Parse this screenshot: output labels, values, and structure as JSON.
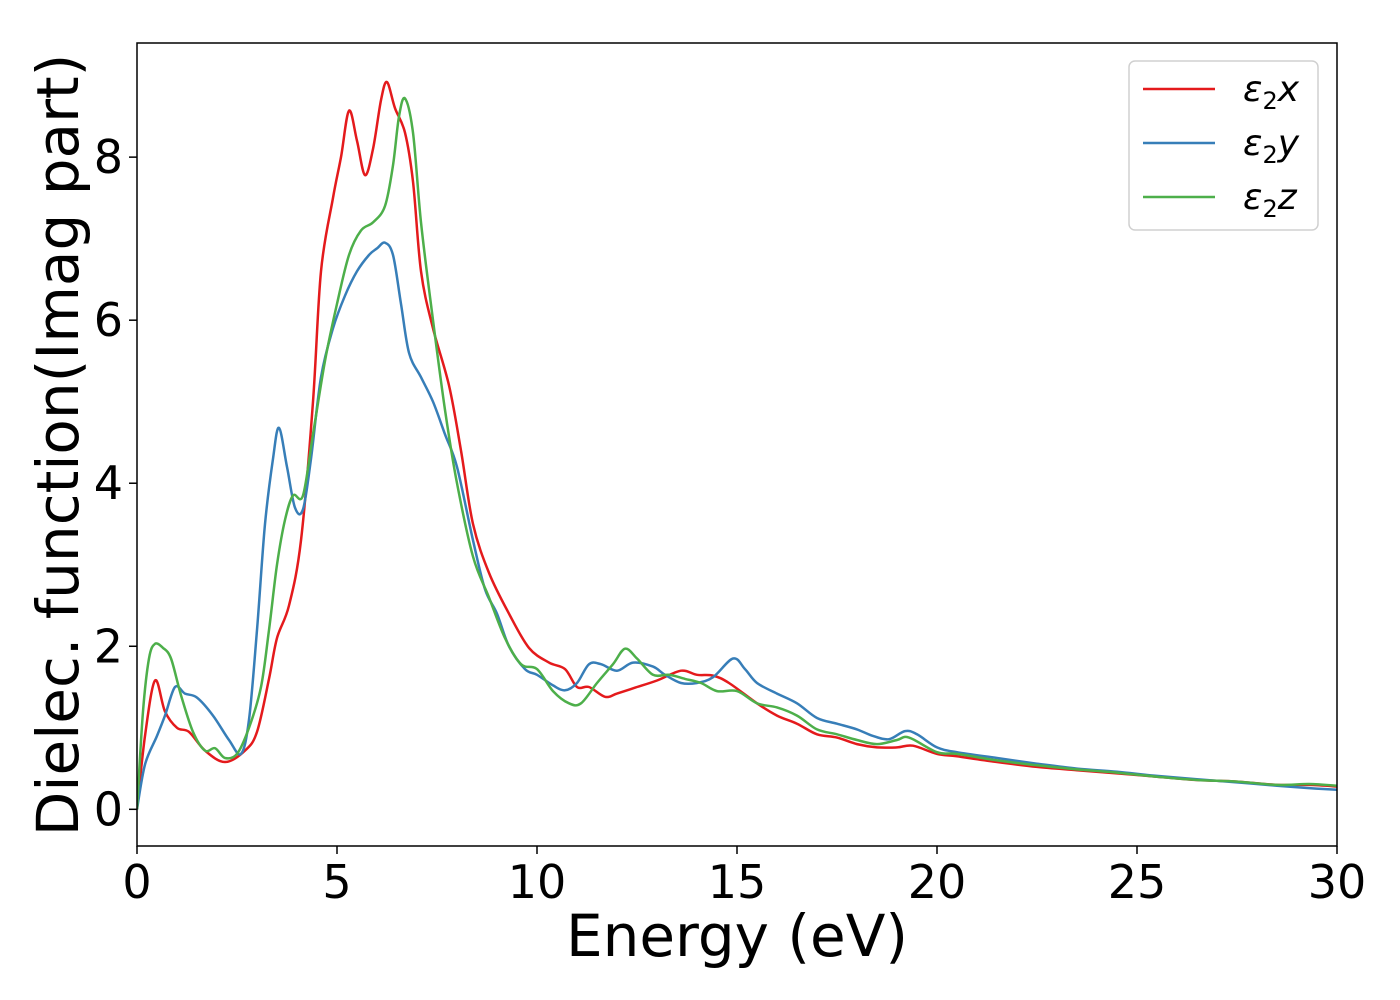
{
  "chart_data": {
    "type": "line",
    "xlabel": "Energy (eV)",
    "ylabel": "Dielec. function(Imag part)",
    "xlim": [
      0,
      30
    ],
    "ylim": [
      -0.45,
      9.4
    ],
    "xticks": [
      0,
      5,
      10,
      15,
      20,
      25,
      30
    ],
    "yticks": [
      0,
      2,
      4,
      6,
      8
    ],
    "grid": false,
    "legend_position": "top-right",
    "series": [
      {
        "name": "ε2x",
        "legend": {
          "base": "ε",
          "sub": "2",
          "var": "x"
        },
        "color": "#e41a1c",
        "points": [
          [
            0,
            0
          ],
          [
            0.2,
            0.9
          ],
          [
            0.45,
            1.58
          ],
          [
            0.7,
            1.2
          ],
          [
            1.0,
            1.0
          ],
          [
            1.3,
            0.95
          ],
          [
            1.7,
            0.72
          ],
          [
            2.2,
            0.58
          ],
          [
            2.7,
            0.72
          ],
          [
            3.0,
            0.95
          ],
          [
            3.3,
            1.6
          ],
          [
            3.5,
            2.1
          ],
          [
            3.8,
            2.5
          ],
          [
            4.1,
            3.3
          ],
          [
            4.4,
            5.0
          ],
          [
            4.6,
            6.6
          ],
          [
            4.9,
            7.5
          ],
          [
            5.1,
            8.0
          ],
          [
            5.3,
            8.57
          ],
          [
            5.5,
            8.2
          ],
          [
            5.7,
            7.78
          ],
          [
            5.9,
            8.1
          ],
          [
            6.1,
            8.7
          ],
          [
            6.25,
            8.92
          ],
          [
            6.45,
            8.6
          ],
          [
            6.7,
            8.3
          ],
          [
            6.9,
            7.7
          ],
          [
            7.1,
            6.6
          ],
          [
            7.4,
            5.9
          ],
          [
            7.8,
            5.2
          ],
          [
            8.1,
            4.4
          ],
          [
            8.4,
            3.5
          ],
          [
            8.8,
            2.9
          ],
          [
            9.3,
            2.4
          ],
          [
            9.8,
            1.98
          ],
          [
            10.3,
            1.8
          ],
          [
            10.7,
            1.72
          ],
          [
            11.0,
            1.5
          ],
          [
            11.3,
            1.5
          ],
          [
            11.7,
            1.38
          ],
          [
            12.0,
            1.42
          ],
          [
            12.5,
            1.5
          ],
          [
            13.0,
            1.58
          ],
          [
            13.6,
            1.7
          ],
          [
            14.0,
            1.65
          ],
          [
            14.4,
            1.64
          ],
          [
            14.8,
            1.55
          ],
          [
            15.5,
            1.3
          ],
          [
            16.0,
            1.15
          ],
          [
            16.5,
            1.05
          ],
          [
            17.0,
            0.92
          ],
          [
            17.5,
            0.88
          ],
          [
            18.0,
            0.8
          ],
          [
            18.5,
            0.76
          ],
          [
            19.0,
            0.76
          ],
          [
            19.4,
            0.78
          ],
          [
            20.0,
            0.68
          ],
          [
            20.5,
            0.65
          ],
          [
            21.5,
            0.58
          ],
          [
            22.5,
            0.52
          ],
          [
            23.5,
            0.48
          ],
          [
            24.5,
            0.44
          ],
          [
            25.5,
            0.4
          ],
          [
            26.5,
            0.36
          ],
          [
            27.5,
            0.34
          ],
          [
            28.5,
            0.3
          ],
          [
            29.3,
            0.3
          ],
          [
            30,
            0.28
          ]
        ]
      },
      {
        "name": "ε2y",
        "legend": {
          "base": "ε",
          "sub": "2",
          "var": "y"
        },
        "color": "#377eb8",
        "points": [
          [
            0,
            0
          ],
          [
            0.2,
            0.55
          ],
          [
            0.5,
            0.9
          ],
          [
            0.7,
            1.15
          ],
          [
            0.95,
            1.5
          ],
          [
            1.2,
            1.42
          ],
          [
            1.5,
            1.37
          ],
          [
            1.9,
            1.15
          ],
          [
            2.3,
            0.85
          ],
          [
            2.6,
            0.68
          ],
          [
            2.8,
            1.1
          ],
          [
            3.0,
            2.2
          ],
          [
            3.2,
            3.5
          ],
          [
            3.4,
            4.3
          ],
          [
            3.55,
            4.68
          ],
          [
            3.75,
            4.2
          ],
          [
            3.95,
            3.7
          ],
          [
            4.15,
            3.68
          ],
          [
            4.35,
            4.3
          ],
          [
            4.6,
            5.3
          ],
          [
            4.9,
            5.9
          ],
          [
            5.2,
            6.3
          ],
          [
            5.5,
            6.6
          ],
          [
            5.8,
            6.8
          ],
          [
            6.0,
            6.88
          ],
          [
            6.2,
            6.95
          ],
          [
            6.4,
            6.8
          ],
          [
            6.6,
            6.2
          ],
          [
            6.8,
            5.6
          ],
          [
            7.1,
            5.3
          ],
          [
            7.4,
            5.0
          ],
          [
            7.7,
            4.6
          ],
          [
            8.0,
            4.2
          ],
          [
            8.4,
            3.3
          ],
          [
            8.7,
            2.7
          ],
          [
            9.0,
            2.4
          ],
          [
            9.3,
            2.0
          ],
          [
            9.7,
            1.72
          ],
          [
            10.0,
            1.65
          ],
          [
            10.4,
            1.52
          ],
          [
            10.7,
            1.46
          ],
          [
            11.0,
            1.55
          ],
          [
            11.3,
            1.78
          ],
          [
            11.6,
            1.78
          ],
          [
            12.0,
            1.7
          ],
          [
            12.4,
            1.8
          ],
          [
            12.9,
            1.75
          ],
          [
            13.2,
            1.65
          ],
          [
            13.6,
            1.55
          ],
          [
            14.0,
            1.55
          ],
          [
            14.4,
            1.62
          ],
          [
            14.9,
            1.85
          ],
          [
            15.2,
            1.72
          ],
          [
            15.5,
            1.55
          ],
          [
            16.0,
            1.42
          ],
          [
            16.5,
            1.3
          ],
          [
            17.0,
            1.12
          ],
          [
            17.5,
            1.05
          ],
          [
            18.0,
            0.98
          ],
          [
            18.4,
            0.9
          ],
          [
            18.8,
            0.86
          ],
          [
            19.2,
            0.96
          ],
          [
            19.5,
            0.92
          ],
          [
            20.0,
            0.76
          ],
          [
            20.5,
            0.7
          ],
          [
            21.5,
            0.63
          ],
          [
            22.5,
            0.56
          ],
          [
            23.5,
            0.5
          ],
          [
            24.5,
            0.46
          ],
          [
            25.5,
            0.41
          ],
          [
            26.5,
            0.37
          ],
          [
            27.5,
            0.33
          ],
          [
            28.5,
            0.29
          ],
          [
            29.3,
            0.26
          ],
          [
            30,
            0.24
          ]
        ]
      },
      {
        "name": "ε2z",
        "legend": {
          "base": "ε",
          "sub": "2",
          "var": "z"
        },
        "color": "#4daf4a",
        "points": [
          [
            0,
            0
          ],
          [
            0.15,
            1.2
          ],
          [
            0.3,
            1.85
          ],
          [
            0.45,
            2.03
          ],
          [
            0.65,
            1.98
          ],
          [
            0.85,
            1.85
          ],
          [
            1.1,
            1.4
          ],
          [
            1.4,
            0.95
          ],
          [
            1.7,
            0.72
          ],
          [
            1.95,
            0.75
          ],
          [
            2.2,
            0.63
          ],
          [
            2.5,
            0.68
          ],
          [
            2.8,
            1.0
          ],
          [
            3.1,
            1.5
          ],
          [
            3.3,
            2.2
          ],
          [
            3.5,
            3.0
          ],
          [
            3.7,
            3.55
          ],
          [
            3.9,
            3.85
          ],
          [
            4.15,
            3.85
          ],
          [
            4.4,
            4.6
          ],
          [
            4.7,
            5.5
          ],
          [
            5.0,
            6.2
          ],
          [
            5.3,
            6.8
          ],
          [
            5.6,
            7.1
          ],
          [
            5.9,
            7.2
          ],
          [
            6.2,
            7.4
          ],
          [
            6.4,
            7.9
          ],
          [
            6.55,
            8.5
          ],
          [
            6.7,
            8.72
          ],
          [
            6.9,
            8.3
          ],
          [
            7.1,
            7.2
          ],
          [
            7.4,
            6.0
          ],
          [
            7.7,
            4.9
          ],
          [
            8.0,
            4.0
          ],
          [
            8.4,
            3.1
          ],
          [
            8.8,
            2.6
          ],
          [
            9.2,
            2.1
          ],
          [
            9.6,
            1.78
          ],
          [
            10.0,
            1.72
          ],
          [
            10.4,
            1.45
          ],
          [
            10.8,
            1.3
          ],
          [
            11.1,
            1.3
          ],
          [
            11.5,
            1.55
          ],
          [
            11.9,
            1.78
          ],
          [
            12.2,
            1.97
          ],
          [
            12.5,
            1.85
          ],
          [
            12.9,
            1.65
          ],
          [
            13.3,
            1.65
          ],
          [
            13.7,
            1.6
          ],
          [
            14.1,
            1.55
          ],
          [
            14.5,
            1.45
          ],
          [
            15.0,
            1.45
          ],
          [
            15.5,
            1.3
          ],
          [
            16.0,
            1.25
          ],
          [
            16.5,
            1.15
          ],
          [
            17.0,
            0.98
          ],
          [
            17.5,
            0.92
          ],
          [
            18.0,
            0.85
          ],
          [
            18.5,
            0.8
          ],
          [
            19.0,
            0.85
          ],
          [
            19.3,
            0.88
          ],
          [
            20.0,
            0.7
          ],
          [
            20.5,
            0.68
          ],
          [
            21.5,
            0.6
          ],
          [
            22.5,
            0.54
          ],
          [
            23.5,
            0.49
          ],
          [
            24.5,
            0.45
          ],
          [
            25.5,
            0.4
          ],
          [
            26.5,
            0.36
          ],
          [
            27.5,
            0.34
          ],
          [
            28.5,
            0.3
          ],
          [
            29.3,
            0.31
          ],
          [
            30,
            0.29
          ]
        ]
      }
    ]
  }
}
